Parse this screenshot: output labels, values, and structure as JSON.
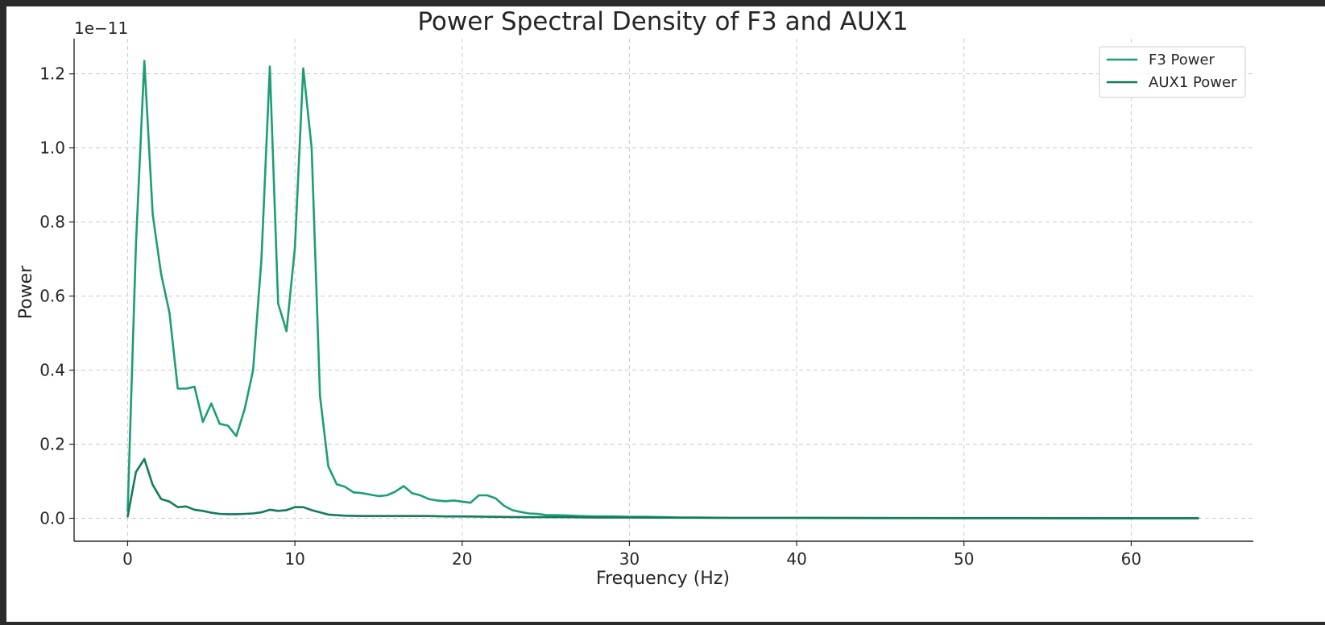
{
  "chart_data": {
    "type": "line",
    "title": "Power Spectral Density of F3 and AUX1",
    "xlabel": "Frequency (Hz)",
    "ylabel": "Power",
    "y_offset_label": "1e−11",
    "xlim": [
      -3.2,
      67.3
    ],
    "ylim": [
      -0.062,
      1.295
    ],
    "x_ticks": [
      0,
      10,
      20,
      30,
      40,
      50,
      60
    ],
    "x_tick_labels": [
      "0",
      "10",
      "20",
      "30",
      "40",
      "50",
      "60"
    ],
    "y_ticks": [
      0.0,
      0.2,
      0.4,
      0.6,
      0.8,
      1.0,
      1.2
    ],
    "y_tick_labels": [
      "0.0",
      "0.2",
      "0.4",
      "0.6",
      "0.8",
      "1.0",
      "1.2"
    ],
    "grid": true,
    "legend_position": "top-right",
    "series": [
      {
        "name": "F3 Power",
        "color": "#1b9e77",
        "x": [
          0,
          0.5,
          1.0,
          1.5,
          2.0,
          2.5,
          3.0,
          3.5,
          4.0,
          4.5,
          5.0,
          5.5,
          6.0,
          6.5,
          7.0,
          7.5,
          8.0,
          8.5,
          9.0,
          9.5,
          10.0,
          10.5,
          11.0,
          11.5,
          12.0,
          12.5,
          13.0,
          13.5,
          14.0,
          14.5,
          15.0,
          15.5,
          16.0,
          16.5,
          17.0,
          17.5,
          18.0,
          18.5,
          19.0,
          19.5,
          20.0,
          20.5,
          21.0,
          21.5,
          22.0,
          22.5,
          23.0,
          23.5,
          24.0,
          24.5,
          25.0,
          26.0,
          27.0,
          28.0,
          29.0,
          30.0,
          31.0,
          32.0,
          33.0,
          34.0,
          36.0,
          40.0,
          45.0,
          50.0,
          55.0,
          60.0,
          64.0
        ],
        "y": [
          0.02,
          0.74,
          1.235,
          0.82,
          0.66,
          0.555,
          0.35,
          0.35,
          0.355,
          0.26,
          0.31,
          0.255,
          0.25,
          0.222,
          0.295,
          0.4,
          0.7,
          1.22,
          0.58,
          0.505,
          0.73,
          1.215,
          1.0,
          0.33,
          0.14,
          0.092,
          0.085,
          0.07,
          0.068,
          0.064,
          0.06,
          0.062,
          0.072,
          0.087,
          0.068,
          0.062,
          0.052,
          0.048,
          0.046,
          0.048,
          0.045,
          0.042,
          0.062,
          0.062,
          0.054,
          0.034,
          0.022,
          0.017,
          0.013,
          0.012,
          0.009,
          0.008,
          0.006,
          0.005,
          0.005,
          0.004,
          0.004,
          0.003,
          0.002,
          0.002,
          0.001,
          0.001,
          0.0005,
          0.0005,
          0.0003,
          0.0003,
          0.0002
        ]
      },
      {
        "name": "AUX1 Power",
        "color": "#147a5c",
        "x": [
          0,
          0.5,
          1.0,
          1.5,
          2.0,
          2.5,
          3.0,
          3.5,
          4.0,
          4.5,
          5.0,
          5.5,
          6.0,
          6.5,
          7.0,
          7.5,
          8.0,
          8.5,
          9.0,
          9.5,
          10.0,
          10.5,
          11.0,
          11.5,
          12.0,
          13.0,
          14.0,
          15.0,
          16.0,
          17.0,
          18.0,
          19.0,
          20.0,
          22.0,
          24.0,
          26.0,
          28.0,
          30.0,
          35.0,
          40.0,
          50.0,
          60.0,
          64.0
        ],
        "y": [
          0.005,
          0.125,
          0.16,
          0.09,
          0.052,
          0.045,
          0.03,
          0.032,
          0.023,
          0.02,
          0.015,
          0.012,
          0.011,
          0.011,
          0.012,
          0.013,
          0.016,
          0.023,
          0.02,
          0.022,
          0.03,
          0.03,
          0.022,
          0.016,
          0.01,
          0.007,
          0.006,
          0.006,
          0.006,
          0.006,
          0.006,
          0.005,
          0.005,
          0.004,
          0.003,
          0.003,
          0.002,
          0.002,
          0.001,
          0.001,
          0.0005,
          0.0003,
          0.0002
        ]
      }
    ]
  }
}
